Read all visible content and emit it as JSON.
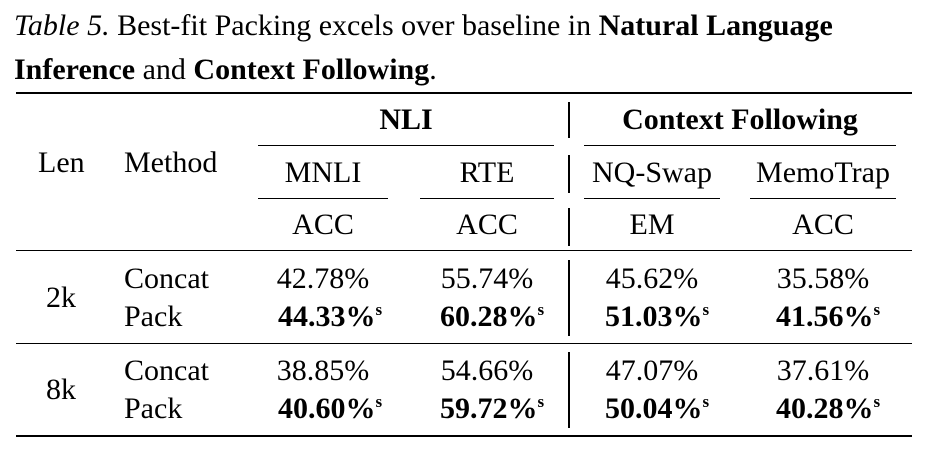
{
  "caption": {
    "label": "Table 5.",
    "text_before": " Best-fit Packing excels over baseline in ",
    "bold1": "Natural Language Inference",
    "text_mid": " and ",
    "bold2": "Context Following",
    "text_end": "."
  },
  "table": {
    "col_len": "Len",
    "col_method": "Method",
    "group_nli": "NLI",
    "group_cf": "Context Following",
    "datasets": [
      "MNLI",
      "RTE",
      "NQ-Swap",
      "MemoTrap"
    ],
    "metrics": [
      "ACC",
      "ACC",
      "EM",
      "ACC"
    ],
    "sup_marker": "s",
    "rows": [
      {
        "len": "2k",
        "method": "Concat",
        "values": [
          "42.78%",
          "55.74%",
          "45.62%",
          "35.58%"
        ]
      },
      {
        "len": "2k",
        "method": "Pack",
        "values": [
          "44.33%",
          "60.28%",
          "51.03%",
          "41.56%"
        ]
      },
      {
        "len": "8k",
        "method": "Concat",
        "values": [
          "38.85%",
          "54.66%",
          "47.07%",
          "37.61%"
        ]
      },
      {
        "len": "8k",
        "method": "Pack",
        "values": [
          "40.60%",
          "59.72%",
          "50.04%",
          "40.28%"
        ]
      }
    ]
  }
}
